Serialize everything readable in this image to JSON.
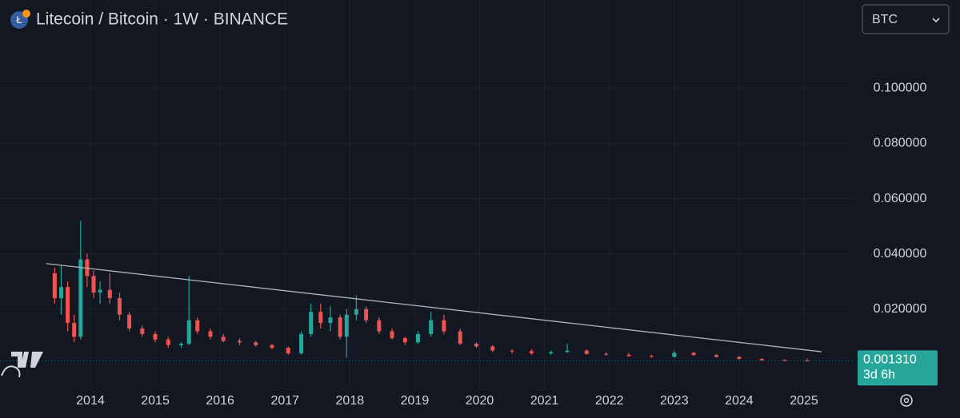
{
  "chart_data": {
    "type": "candlestick",
    "title": "Litecoin / Bitcoin · 1W · BINANCE",
    "currency": "BTC",
    "up_color": "#26a69a",
    "down_color": "#ef5350",
    "grid": true,
    "xlim": [
      2012.607,
      2025.777
    ],
    "xticks": [
      2014,
      2015,
      2016,
      2017,
      2018,
      2019,
      2020,
      2021,
      2022,
      2023,
      2024,
      2025
    ],
    "ylim": [
      -0.0084,
      0.1319
    ],
    "yticks": [
      {
        "value": 0.02,
        "label": "0.020000"
      },
      {
        "value": 0.04,
        "label": "0.040000"
      },
      {
        "value": 0.06,
        "label": "0.060000"
      },
      {
        "value": 0.08,
        "label": "0.080000"
      },
      {
        "value": 0.1,
        "label": "0.100000"
      }
    ],
    "x": [
      2013.45,
      2013.55,
      2013.65,
      2013.75,
      2013.85,
      2013.95,
      2014.05,
      2014.15,
      2014.3,
      2014.45,
      2014.6,
      2014.8,
      2015.0,
      2015.2,
      2015.4,
      2015.52,
      2015.65,
      2015.85,
      2016.05,
      2016.3,
      2016.55,
      2016.8,
      2017.05,
      2017.25,
      2017.4,
      2017.55,
      2017.7,
      2017.85,
      2017.95,
      2018.1,
      2018.25,
      2018.45,
      2018.65,
      2018.85,
      2019.05,
      2019.25,
      2019.45,
      2019.7,
      2019.95,
      2020.2,
      2020.5,
      2020.8,
      2021.1,
      2021.35,
      2021.65,
      2021.95,
      2022.3,
      2022.65,
      2023.0,
      2023.3,
      2023.65,
      2024.0,
      2024.35,
      2024.7,
      2025.05
    ],
    "open": [
      0.033,
      0.024,
      0.028,
      0.015,
      0.01,
      0.038,
      0.032,
      0.026,
      0.027,
      0.024,
      0.018,
      0.013,
      0.011,
      0.009,
      0.007,
      0.0075,
      0.016,
      0.012,
      0.01,
      0.0085,
      0.008,
      0.007,
      0.006,
      0.004,
      0.011,
      0.019,
      0.015,
      0.017,
      0.01,
      0.018,
      0.02,
      0.016,
      0.012,
      0.0095,
      0.008,
      0.011,
      0.016,
      0.012,
      0.0075,
      0.0065,
      0.005,
      0.0048,
      0.004,
      0.0045,
      0.005,
      0.0038,
      0.0035,
      0.003,
      0.0027,
      0.0042,
      0.0034,
      0.0027,
      0.002,
      0.0015,
      0.0014
    ],
    "high": [
      0.035,
      0.036,
      0.03,
      0.018,
      0.052,
      0.04,
      0.034,
      0.03,
      0.033,
      0.026,
      0.019,
      0.014,
      0.012,
      0.01,
      0.008,
      0.032,
      0.017,
      0.013,
      0.011,
      0.0095,
      0.0085,
      0.0075,
      0.0065,
      0.012,
      0.022,
      0.022,
      0.021,
      0.018,
      0.02,
      0.025,
      0.021,
      0.017,
      0.013,
      0.01,
      0.012,
      0.019,
      0.018,
      0.013,
      0.008,
      0.007,
      0.0055,
      0.0055,
      0.005,
      0.0075,
      0.0055,
      0.0045,
      0.0042,
      0.0035,
      0.0048,
      0.0045,
      0.0038,
      0.003,
      0.0022,
      0.0019,
      0.0022
    ],
    "low": [
      0.022,
      0.018,
      0.012,
      0.008,
      0.009,
      0.028,
      0.024,
      0.022,
      0.022,
      0.016,
      0.012,
      0.01,
      0.008,
      0.006,
      0.006,
      0.007,
      0.011,
      0.009,
      0.008,
      0.007,
      0.0065,
      0.0055,
      0.0035,
      0.0035,
      0.01,
      0.013,
      0.012,
      0.009,
      0.0025,
      0.016,
      0.015,
      0.011,
      0.009,
      0.007,
      0.0075,
      0.01,
      0.011,
      0.007,
      0.006,
      0.0045,
      0.004,
      0.0035,
      0.0035,
      0.0042,
      0.0035,
      0.0032,
      0.0028,
      0.0025,
      0.0026,
      0.0032,
      0.0025,
      0.0018,
      0.0013,
      0.0012,
      0.0012
    ],
    "close": [
      0.024,
      0.028,
      0.015,
      0.01,
      0.038,
      0.032,
      0.026,
      0.027,
      0.024,
      0.018,
      0.013,
      0.011,
      0.009,
      0.007,
      0.0075,
      0.016,
      0.012,
      0.01,
      0.0085,
      0.008,
      0.007,
      0.006,
      0.004,
      0.011,
      0.019,
      0.015,
      0.017,
      0.01,
      0.018,
      0.02,
      0.016,
      0.012,
      0.0095,
      0.008,
      0.011,
      0.016,
      0.012,
      0.0075,
      0.0065,
      0.005,
      0.0048,
      0.004,
      0.0045,
      0.005,
      0.0038,
      0.0035,
      0.003,
      0.0027,
      0.0042,
      0.0034,
      0.0027,
      0.002,
      0.0015,
      0.0014,
      0.00131
    ],
    "trendline": {
      "x": [
        2013.32,
        2025.27
      ],
      "y": [
        0.0365,
        0.0046
      ],
      "color": "#b2b5be"
    },
    "last_price": {
      "value": 0.00131,
      "label": "0.001310"
    },
    "countdown": "3d 6h"
  }
}
